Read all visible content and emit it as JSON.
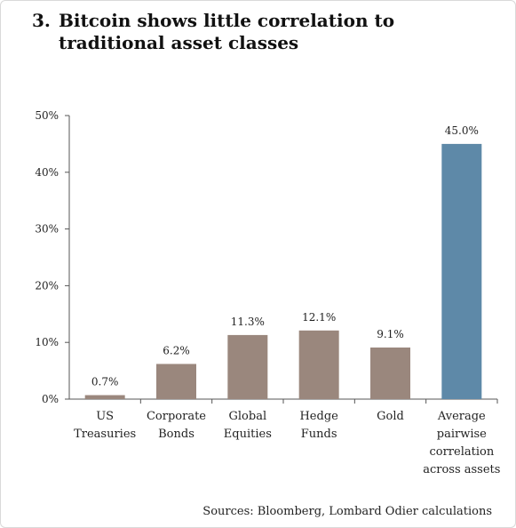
{
  "title": {
    "number": "3.",
    "text": "Bitcoin shows little correlation to traditional asset classes"
  },
  "source": "Sources: Bloomberg, Lombard Odier calculations",
  "colors": {
    "bar_default": "#9a877d",
    "bar_highlight": "#5e89a8",
    "axis": "#555555",
    "text": "#222222"
  },
  "chart_data": {
    "type": "bar",
    "categories": [
      [
        "US",
        "Treasuries"
      ],
      [
        "Corporate",
        "Bonds"
      ],
      [
        "Global",
        "Equities"
      ],
      [
        "Hedge",
        "Funds"
      ],
      [
        "Gold"
      ],
      [
        "Average",
        "pairwise",
        "correlation",
        "across assets"
      ]
    ],
    "values": [
      0.7,
      6.2,
      11.3,
      12.1,
      9.1,
      45.0
    ],
    "data_labels": [
      "0.7%",
      "6.2%",
      "11.3%",
      "12.1%",
      "9.1%",
      "45.0%"
    ],
    "highlight_index": 5,
    "y_ticks": [
      "0%",
      "10%",
      "20%",
      "30%",
      "40%",
      "50%"
    ],
    "ylim": [
      0,
      50
    ],
    "grid": false,
    "legend": "none"
  }
}
